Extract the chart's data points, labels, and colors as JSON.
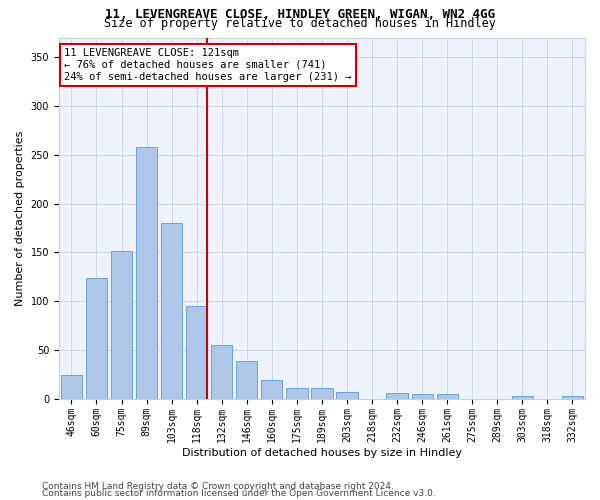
{
  "title1": "11, LEVENGREAVE CLOSE, HINDLEY GREEN, WIGAN, WN2 4GG",
  "title2": "Size of property relative to detached houses in Hindley",
  "xlabel": "Distribution of detached houses by size in Hindley",
  "ylabel": "Number of detached properties",
  "bar_labels": [
    "46sqm",
    "60sqm",
    "75sqm",
    "89sqm",
    "103sqm",
    "118sqm",
    "132sqm",
    "146sqm",
    "160sqm",
    "175sqm",
    "189sqm",
    "203sqm",
    "218sqm",
    "232sqm",
    "246sqm",
    "261sqm",
    "275sqm",
    "289sqm",
    "303sqm",
    "318sqm",
    "332sqm"
  ],
  "bar_values": [
    25,
    124,
    152,
    258,
    180,
    95,
    55,
    39,
    20,
    11,
    11,
    7,
    0,
    6,
    5,
    5,
    0,
    0,
    3,
    0,
    3
  ],
  "bar_color": "#aec6e8",
  "bar_edge_color": "#5b9bd5",
  "reference_line_color": "#cc0000",
  "annotation_text": "11 LEVENGREAVE CLOSE: 121sqm\n← 76% of detached houses are smaller (741)\n24% of semi-detached houses are larger (231) →",
  "annotation_box_color": "#cc0000",
  "ylim": [
    0,
    370
  ],
  "yticks": [
    0,
    50,
    100,
    150,
    200,
    250,
    300,
    350
  ],
  "footer1": "Contains HM Land Registry data © Crown copyright and database right 2024.",
  "footer2": "Contains public sector information licensed under the Open Government Licence v3.0.",
  "bg_color": "#eef2fb",
  "grid_color": "#c8d0e0",
  "title1_fontsize": 9,
  "title2_fontsize": 8.5,
  "axis_label_fontsize": 8,
  "tick_fontsize": 7,
  "footer_fontsize": 6.5,
  "annotation_fontsize": 7.5
}
